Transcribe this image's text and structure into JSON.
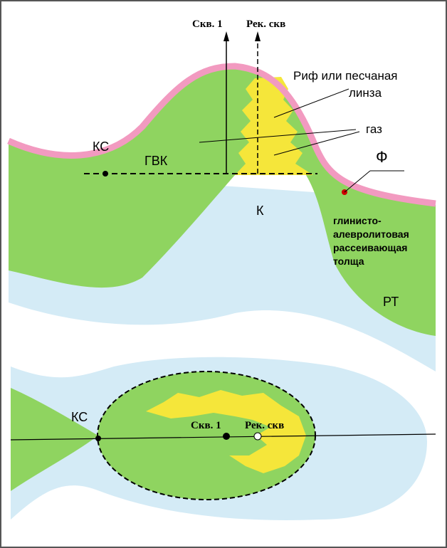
{
  "section": {
    "wells": [
      "Скв. 1",
      "Рек. скв"
    ],
    "reef_label": [
      "Риф или песчаная",
      "линза"
    ],
    "gas_label": "газ",
    "ks": "КС",
    "gvk": "ГВК",
    "f": "Ф",
    "k": "К",
    "clay_label": [
      "глинисто-",
      "алевролитовая",
      "рассеивающая",
      "толща"
    ],
    "rt": "РТ"
  },
  "plan": {
    "ks": "КС",
    "wells": [
      "Скв. 1",
      "Рек. скв"
    ]
  }
}
